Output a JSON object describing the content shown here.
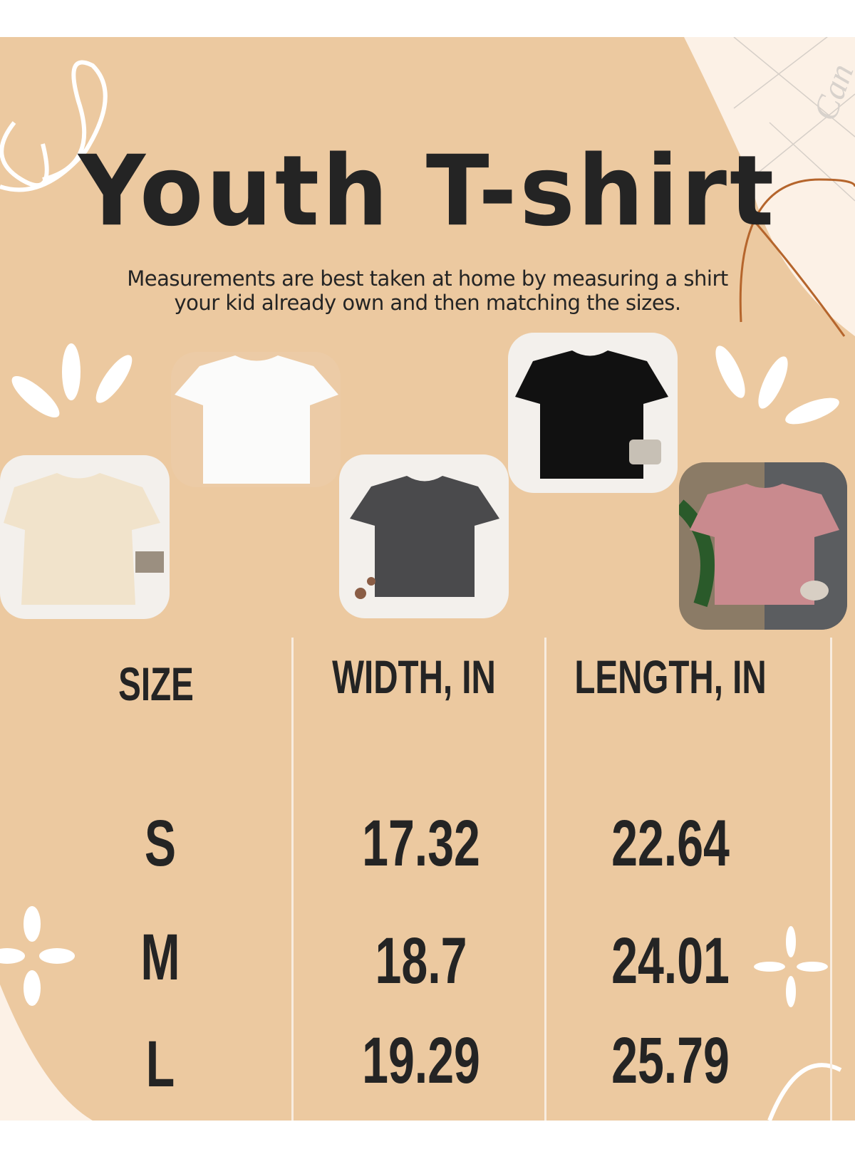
{
  "title": "Youth T-shirt",
  "subtitle": [
    "Measurements are best taken at home by measuring a shirt",
    "your kid already own and then matching the sizes."
  ],
  "watermark": "Can",
  "colors": {
    "background": "#ecc9a0",
    "text": "#242424",
    "accent_line": "#b5652c",
    "corner_panel": "#fcf1e6"
  },
  "photos": [
    {
      "color": "white",
      "shirt": "#fbfbfa"
    },
    {
      "color": "cream",
      "shirt": "#f1e3cb"
    },
    {
      "color": "charcoal",
      "shirt": "#4a4a4c"
    },
    {
      "color": "black",
      "shirt": "#111111"
    },
    {
      "color": "dusty pink",
      "shirt": "#c98a8e"
    }
  ],
  "table": {
    "headers": [
      "SIZE",
      "WIDTH, IN",
      "LENGTH, IN"
    ],
    "rows": [
      {
        "size": "S",
        "width": "17.32",
        "length": "22.64"
      },
      {
        "size": "M",
        "width": "18.7",
        "length": "24.01"
      },
      {
        "size": "L",
        "width": "19.29",
        "length": "25.79"
      }
    ]
  }
}
